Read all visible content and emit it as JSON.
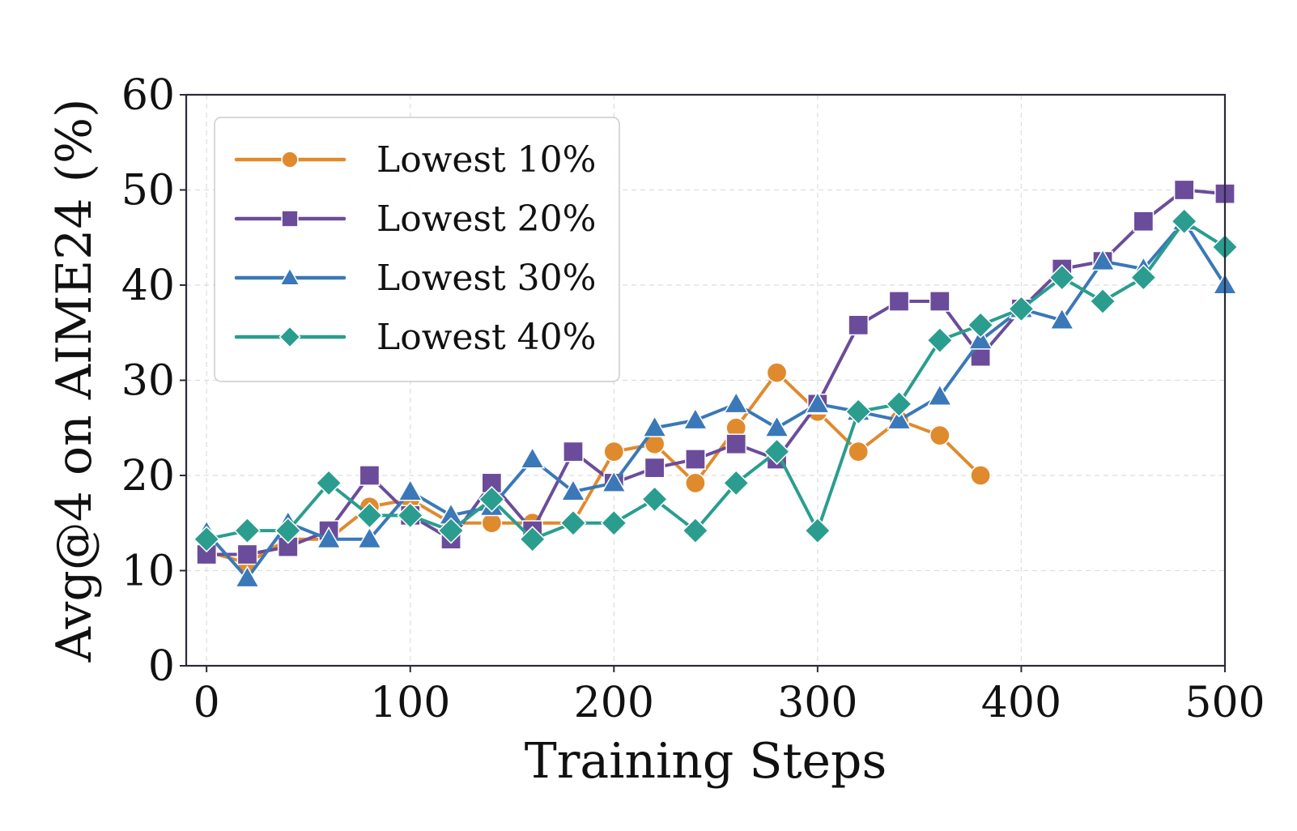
{
  "chart_data": {
    "type": "line",
    "xlabel": "Training Steps",
    "ylabel": "Avg@4 on AIME24 (%)",
    "xlim": [
      -10,
      500
    ],
    "ylim": [
      0,
      60
    ],
    "xticks": [
      0,
      100,
      200,
      300,
      400,
      500
    ],
    "yticks": [
      0,
      10,
      20,
      30,
      40,
      50,
      60
    ],
    "xtick_labels": [
      "0",
      "100",
      "200",
      "300",
      "400",
      "500"
    ],
    "ytick_labels": [
      "0",
      "10",
      "20",
      "30",
      "40",
      "50",
      "60"
    ],
    "grid": true,
    "legend_position": "top-left",
    "series": [
      {
        "name": "Lowest 10%",
        "color": "#E08A2E",
        "marker": "circle",
        "x": [
          0,
          20,
          40,
          60,
          80,
          100,
          120,
          140,
          160,
          180,
          200,
          220,
          240,
          260,
          280,
          300,
          320,
          340,
          360,
          380
        ],
        "values": [
          12.0,
          10.8,
          13.3,
          13.3,
          16.7,
          17.5,
          15.0,
          15.0,
          15.0,
          15.0,
          22.5,
          23.3,
          19.2,
          25.0,
          30.8,
          26.7,
          22.5,
          25.8,
          24.2,
          20.0
        ]
      },
      {
        "name": "Lowest 20%",
        "color": "#6B4C9A",
        "marker": "square",
        "x": [
          0,
          20,
          40,
          60,
          80,
          100,
          120,
          140,
          160,
          180,
          200,
          220,
          240,
          260,
          280,
          300,
          320,
          340,
          360,
          380,
          400,
          420,
          440,
          460,
          480,
          500
        ],
        "values": [
          11.7,
          11.7,
          12.5,
          14.2,
          20.0,
          15.8,
          13.3,
          19.2,
          14.2,
          22.5,
          19.2,
          20.8,
          21.7,
          23.3,
          21.7,
          27.5,
          35.8,
          38.3,
          38.3,
          32.5,
          37.5,
          41.7,
          42.5,
          46.7,
          50.0,
          49.6
        ]
      },
      {
        "name": "Lowest 30%",
        "color": "#3A78B8",
        "marker": "triangle",
        "x": [
          0,
          20,
          40,
          60,
          80,
          100,
          120,
          140,
          160,
          180,
          200,
          220,
          240,
          260,
          280,
          300,
          320,
          340,
          360,
          380,
          400,
          420,
          440,
          460,
          480,
          500
        ],
        "values": [
          14.0,
          9.2,
          15.0,
          13.3,
          13.3,
          18.3,
          15.8,
          16.7,
          21.7,
          18.3,
          19.2,
          25.0,
          25.8,
          27.5,
          25.0,
          27.5,
          26.7,
          25.8,
          28.3,
          34.2,
          37.5,
          36.3,
          42.5,
          41.7,
          46.7,
          40.0
        ]
      },
      {
        "name": "Lowest 40%",
        "color": "#2A9D8F",
        "marker": "diamond",
        "x": [
          0,
          20,
          40,
          60,
          80,
          100,
          120,
          140,
          160,
          180,
          200,
          220,
          240,
          260,
          280,
          300,
          320,
          340,
          360,
          380,
          400,
          420,
          440,
          460,
          480,
          500
        ],
        "values": [
          13.3,
          14.2,
          14.2,
          19.2,
          15.8,
          15.8,
          14.2,
          17.5,
          13.3,
          15.0,
          15.0,
          17.5,
          14.2,
          19.2,
          22.5,
          14.2,
          26.7,
          27.5,
          34.2,
          35.8,
          37.5,
          40.8,
          38.3,
          40.8,
          46.7,
          44.0
        ]
      }
    ]
  }
}
